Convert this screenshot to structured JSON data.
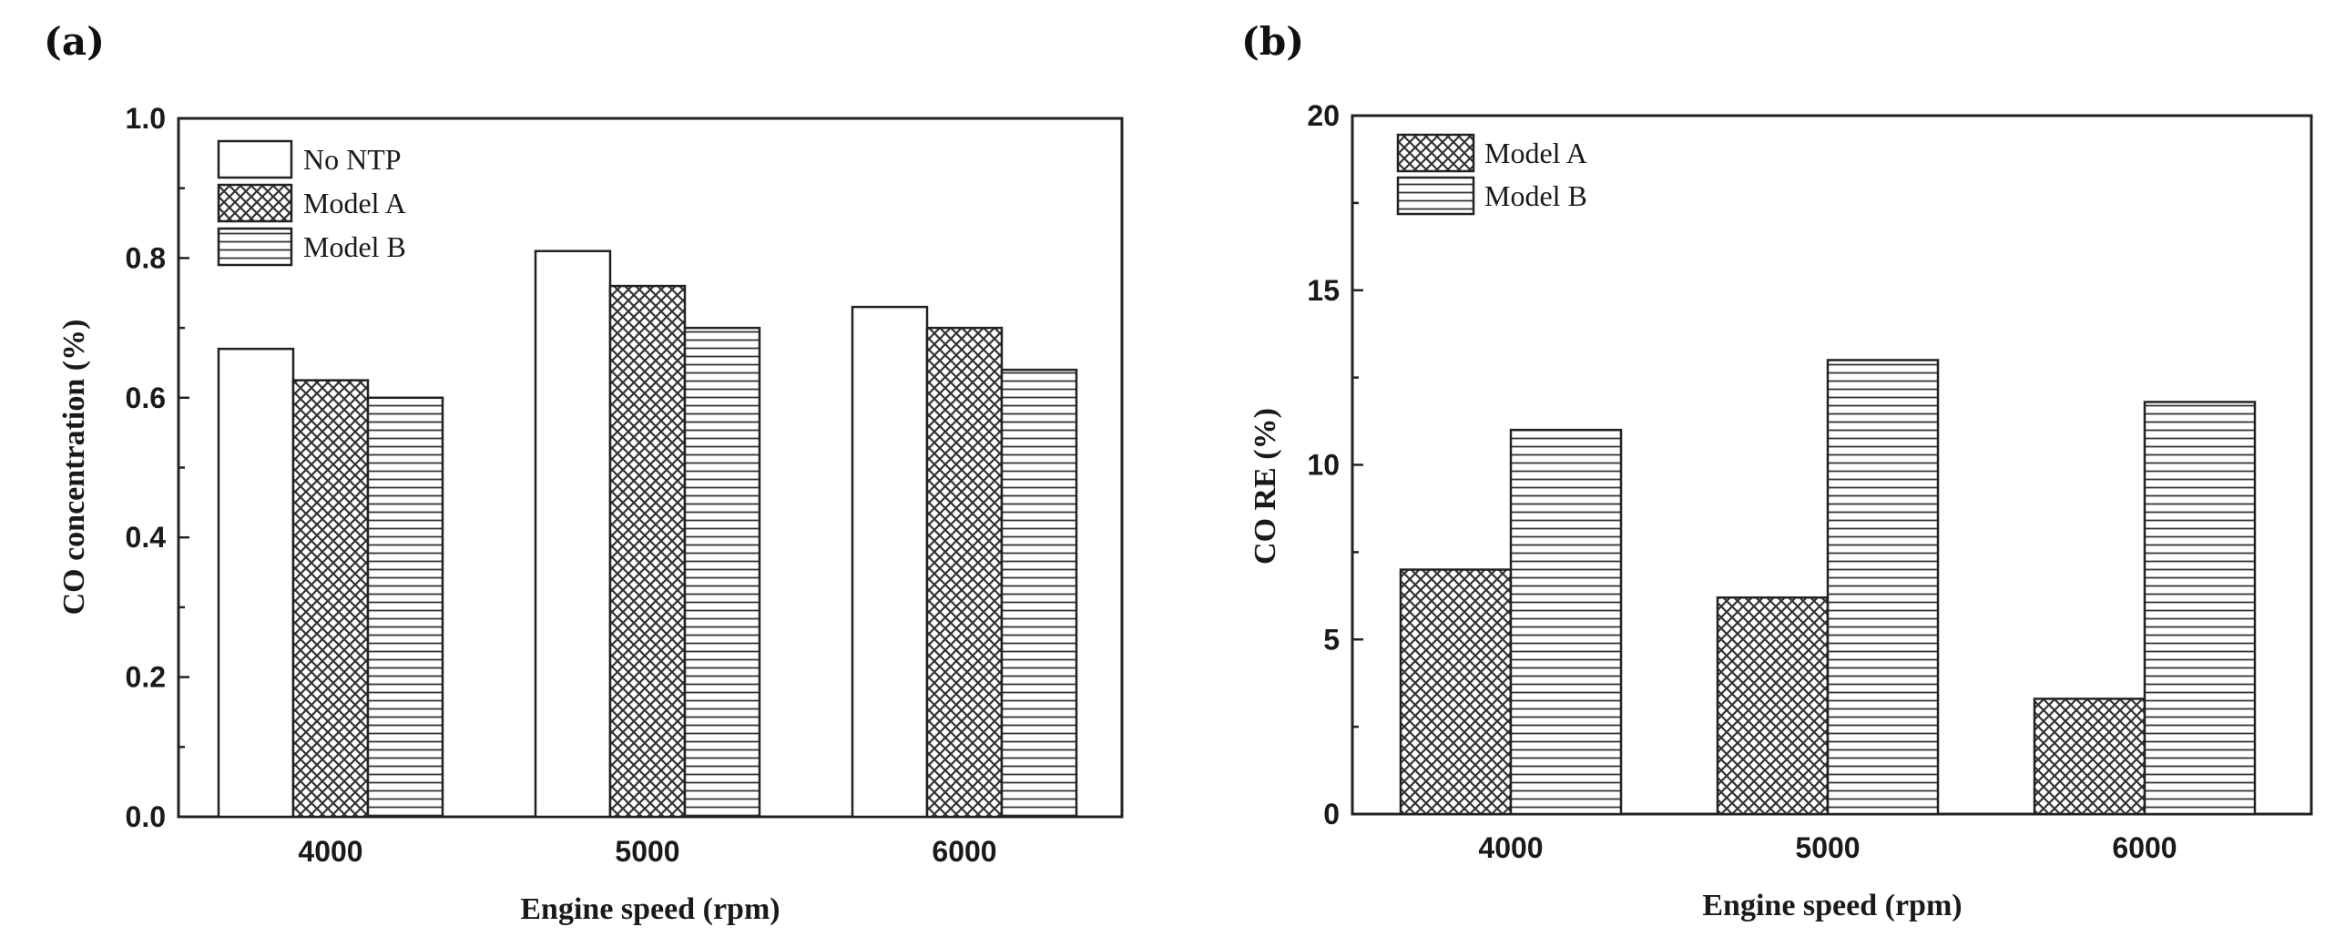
{
  "chart_data": [
    {
      "panel": "(a)",
      "type": "bar",
      "categories": [
        "4000",
        "5000",
        "6000"
      ],
      "series": [
        {
          "name": "No NTP",
          "pattern": "none",
          "values": [
            0.67,
            0.81,
            0.73
          ]
        },
        {
          "name": "Model A",
          "pattern": "crosshatch",
          "values": [
            0.625,
            0.76,
            0.7
          ]
        },
        {
          "name": "Model B",
          "pattern": "hlines",
          "values": [
            0.6,
            0.7,
            0.64
          ]
        }
      ],
      "xlabel": "Engine speed (rpm)",
      "ylabel": "CO concentration (%)",
      "ylim": [
        0,
        1.0
      ],
      "yticks": [
        "0.0",
        "0.2",
        "0.4",
        "0.6",
        "0.8",
        "1.0"
      ],
      "legend_position": "top-left",
      "grid": false
    },
    {
      "panel": "(b)",
      "type": "bar",
      "categories": [
        "4000",
        "5000",
        "6000"
      ],
      "series": [
        {
          "name": "Model A",
          "pattern": "crosshatch",
          "values": [
            7.0,
            6.2,
            3.3
          ]
        },
        {
          "name": "Model B",
          "pattern": "hlines",
          "values": [
            11.0,
            13.0,
            11.8
          ]
        }
      ],
      "xlabel": "Engine speed (rpm)",
      "ylabel": "CO RE (%)",
      "ylim": [
        0,
        20
      ],
      "yticks": [
        "0",
        "5",
        "10",
        "15",
        "20"
      ],
      "legend_position": "top-left",
      "grid": false
    }
  ]
}
